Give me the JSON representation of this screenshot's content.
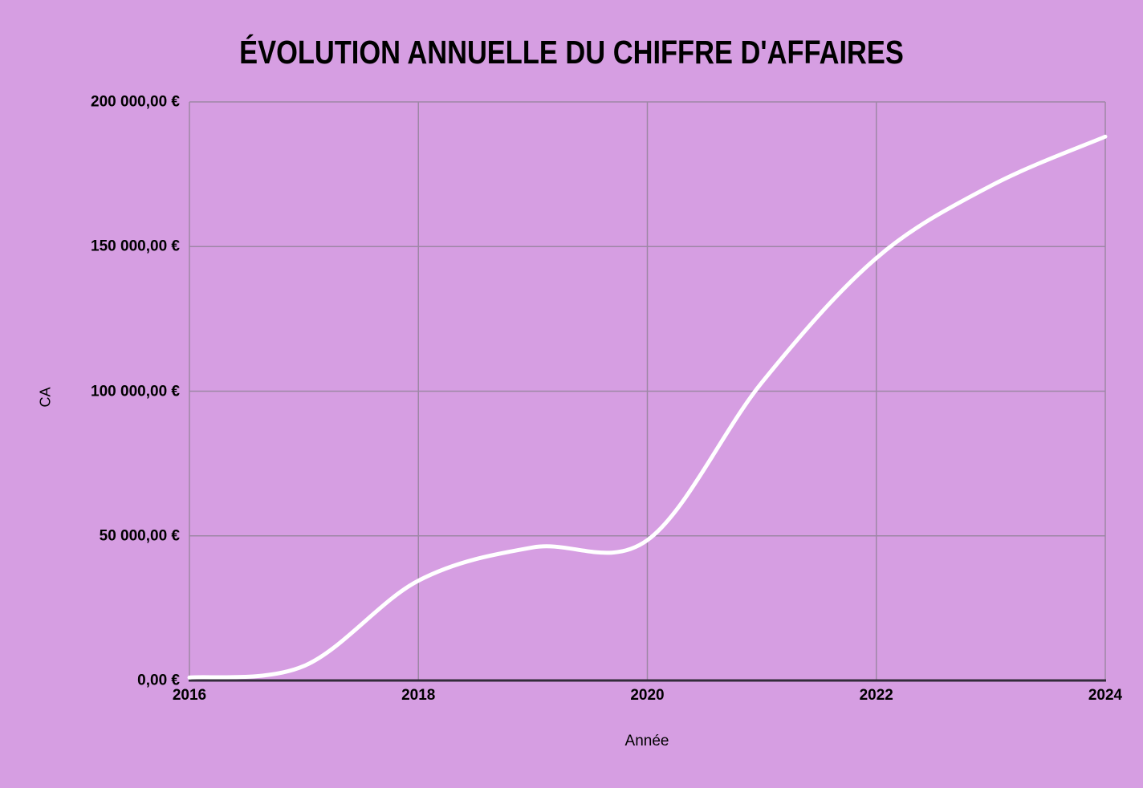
{
  "title": "ÉVOLUTION ANNUELLE DU CHIFFRE D'AFFAIRES",
  "colors": {
    "background": "#d69ee2",
    "gridline": "#9d87a5",
    "axis": "#332c3b",
    "line": "#ffffff",
    "text": "#000000"
  },
  "chart_data": {
    "type": "line",
    "title": "ÉVOLUTION ANNUELLE DU CHIFFRE D'AFFAIRES",
    "xlabel": "Année",
    "ylabel": "CA",
    "series": [
      {
        "name": "CA",
        "x": [
          2016,
          2017,
          2018,
          2019,
          2020,
          2021,
          2022,
          2023,
          2024
        ],
        "values": [
          1000,
          5000,
          34500,
          46000,
          48500,
          103000,
          146000,
          171000,
          188000
        ]
      }
    ],
    "xlim": [
      2016,
      2024
    ],
    "ylim": [
      0,
      200000
    ],
    "grid": true,
    "legend": "none",
    "line_style": "smooth",
    "y_ticks": [
      {
        "value": 0,
        "label": "0,00 €"
      },
      {
        "value": 50000,
        "label": "50 000,00 €"
      },
      {
        "value": 100000,
        "label": "100 000,00 €"
      },
      {
        "value": 150000,
        "label": "150 000,00 €"
      },
      {
        "value": 200000,
        "label": "200 000,00 €"
      }
    ],
    "x_ticks": [
      {
        "value": 2016,
        "label": "2016"
      },
      {
        "value": 2018,
        "label": "2018"
      },
      {
        "value": 2020,
        "label": "2020"
      },
      {
        "value": 2022,
        "label": "2022"
      },
      {
        "value": 2024,
        "label": "2024"
      }
    ]
  }
}
